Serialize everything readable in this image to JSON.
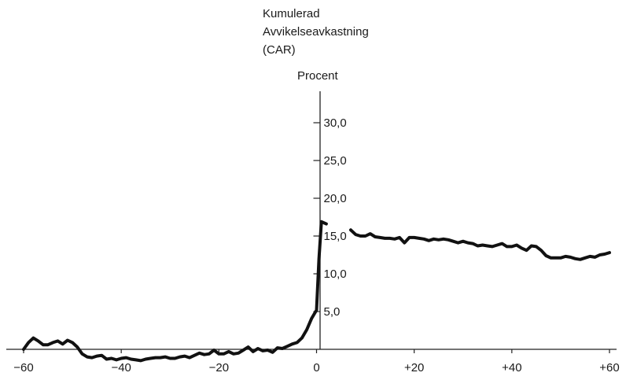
{
  "chart_data": {
    "type": "line",
    "title": "",
    "ylabel_lines": [
      "Kumulerad",
      "Avvikelseavkastning",
      "(CAR)"
    ],
    "yunit": "Procent",
    "xlabel": "",
    "xlim": [
      -60,
      60
    ],
    "ylim": [
      0,
      32
    ],
    "x_ticks": [
      -60,
      -40,
      -20,
      0,
      20,
      40,
      60
    ],
    "x_tick_labels": [
      "−60",
      "−40",
      "−20",
      "0",
      "+20",
      "+40",
      "+60"
    ],
    "y_ticks": [
      5,
      10,
      15,
      20,
      25,
      30
    ],
    "y_tick_labels": [
      "5,0",
      "10,0",
      "15,0",
      "20,0",
      "25,0",
      "30,0"
    ],
    "grid": false,
    "legend": "none",
    "series_color": "#111111",
    "series": [
      {
        "x": [
          -60,
          -59,
          -58,
          -57,
          -56,
          -55,
          -54,
          -53,
          -52,
          -51,
          -50,
          -49,
          -48,
          -47,
          -46,
          -45,
          -44,
          -43,
          -42,
          -41,
          -40,
          -39,
          -38,
          -37,
          -36,
          -35,
          -34,
          -33,
          -32,
          -31,
          -30,
          -29,
          -28,
          -27,
          -26,
          -25,
          -24,
          -23,
          -22,
          -21,
          -20,
          -19,
          -18,
          -17,
          -16,
          -15,
          -14,
          -13,
          -12,
          -11,
          -10,
          -9,
          -8,
          -7,
          -6,
          -5,
          -4,
          -3,
          -2,
          -1,
          0,
          0.5,
          1,
          2
        ],
        "y": [
          0.0,
          0.9,
          1.5,
          1.1,
          0.6,
          0.6,
          0.9,
          1.1,
          0.7,
          1.2,
          0.9,
          0.3,
          -0.6,
          -1.0,
          -1.1,
          -0.9,
          -0.8,
          -1.3,
          -1.2,
          -1.4,
          -1.2,
          -1.1,
          -1.3,
          -1.4,
          -1.5,
          -1.3,
          -1.2,
          -1.1,
          -1.1,
          -1.0,
          -1.2,
          -1.2,
          -1.0,
          -0.9,
          -1.1,
          -0.8,
          -0.5,
          -0.7,
          -0.6,
          -0.1,
          -0.6,
          -0.6,
          -0.3,
          -0.6,
          -0.5,
          -0.1,
          0.3,
          -0.3,
          0.1,
          -0.2,
          -0.1,
          -0.4,
          0.2,
          0.1,
          0.4,
          0.7,
          0.9,
          1.5,
          2.6,
          4.1,
          5.2,
          12.0,
          16.9,
          16.6
        ]
      },
      {
        "x": [
          7,
          8,
          9,
          10,
          11,
          12,
          13,
          14,
          15,
          16,
          17,
          18,
          19,
          20,
          21,
          22,
          23,
          24,
          25,
          26,
          27,
          28,
          29,
          30,
          31,
          32,
          33,
          34,
          35,
          36,
          37,
          38,
          39,
          40,
          41,
          42,
          43,
          44,
          45,
          46,
          47,
          48,
          49,
          50,
          51,
          52,
          53,
          54,
          55,
          56,
          57,
          58,
          59,
          60
        ],
        "y": [
          15.8,
          15.2,
          15.0,
          15.0,
          15.3,
          14.9,
          14.8,
          14.7,
          14.7,
          14.6,
          14.8,
          14.1,
          14.8,
          14.8,
          14.7,
          14.6,
          14.4,
          14.6,
          14.5,
          14.6,
          14.5,
          14.3,
          14.1,
          14.3,
          14.1,
          14.0,
          13.7,
          13.8,
          13.7,
          13.6,
          13.8,
          14.0,
          13.6,
          13.6,
          13.8,
          13.4,
          13.1,
          13.7,
          13.6,
          13.1,
          12.4,
          12.1,
          12.1,
          12.1,
          12.3,
          12.2,
          12.0,
          11.9,
          12.1,
          12.3,
          12.2,
          12.5,
          12.6,
          12.8
        ]
      }
    ]
  }
}
